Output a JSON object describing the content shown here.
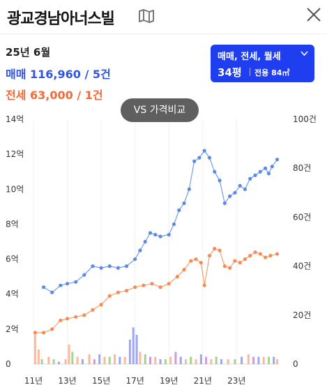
{
  "header": {
    "title": "광교경남아너스빌"
  },
  "summary": {
    "period": "25년 6월",
    "sale_label": "매매",
    "sale_value": "116,960 / 5건",
    "jeonse_label": "전세",
    "jeonse_value": "63,000 / 1건"
  },
  "filter": {
    "types": "매매, 전세, 월세",
    "size": "34평",
    "area": "전용 84㎡"
  },
  "compare_button": "VS 가격비교",
  "colors": {
    "sale": "#5b8ae6",
    "jeonse": "#f68b55",
    "accent": "#1f3ef0"
  },
  "chart_data": {
    "type": "line",
    "x_range": [
      2011,
      2025.5
    ],
    "x_ticks": [
      {
        "value": 2011,
        "label": "11년"
      },
      {
        "value": 2013,
        "label": "13년"
      },
      {
        "value": 2015,
        "label": "15년"
      },
      {
        "value": 2017,
        "label": "17년"
      },
      {
        "value": 2019,
        "label": "19년"
      },
      {
        "value": 2021,
        "label": "21년"
      },
      {
        "value": 2023,
        "label": "23년"
      }
    ],
    "y_left": {
      "range": [
        0,
        14
      ],
      "ticks": [
        {
          "value": 0,
          "label": "0"
        },
        {
          "value": 2,
          "label": "2억"
        },
        {
          "value": 4,
          "label": "4억"
        },
        {
          "value": 6,
          "label": "6억"
        },
        {
          "value": 8,
          "label": "8억"
        },
        {
          "value": 10,
          "label": "10억"
        },
        {
          "value": 12,
          "label": "12억"
        },
        {
          "value": 14,
          "label": "14억"
        }
      ]
    },
    "y_right": {
      "range": [
        0,
        100
      ],
      "ticks": [
        {
          "value": 0,
          "label": "0"
        },
        {
          "value": 20,
          "label": "20건"
        },
        {
          "value": 40,
          "label": "40건"
        },
        {
          "value": 60,
          "label": "60건"
        },
        {
          "value": 80,
          "label": "80건"
        },
        {
          "value": 100,
          "label": "100건"
        }
      ]
    },
    "grid": "vertical",
    "series": [
      {
        "key": "sale",
        "color": "#5b8ae6",
        "points": [
          [
            2011.6,
            4.4
          ],
          [
            2012.1,
            4.1
          ],
          [
            2012.6,
            4.5
          ],
          [
            2013.0,
            4.6
          ],
          [
            2013.5,
            4.7
          ],
          [
            2014.0,
            5.1
          ],
          [
            2014.5,
            5.6
          ],
          [
            2015.0,
            5.5
          ],
          [
            2015.5,
            5.6
          ],
          [
            2016.0,
            5.5
          ],
          [
            2016.5,
            5.6
          ],
          [
            2017.0,
            6.0
          ],
          [
            2017.3,
            6.5
          ],
          [
            2017.6,
            7.0
          ],
          [
            2017.9,
            7.5
          ],
          [
            2018.2,
            7.4
          ],
          [
            2018.5,
            7.3
          ],
          [
            2019.0,
            7.4
          ],
          [
            2019.3,
            8.0
          ],
          [
            2019.6,
            8.8
          ],
          [
            2019.9,
            9.2
          ],
          [
            2020.2,
            10.0
          ],
          [
            2020.5,
            11.6
          ],
          [
            2020.8,
            11.8
          ],
          [
            2021.1,
            12.2
          ],
          [
            2021.4,
            11.8
          ],
          [
            2021.7,
            11.0
          ],
          [
            2022.0,
            10.5
          ],
          [
            2022.3,
            9.2
          ],
          [
            2022.6,
            9.6
          ],
          [
            2022.9,
            9.8
          ],
          [
            2023.2,
            10.2
          ],
          [
            2023.5,
            10.0
          ],
          [
            2023.8,
            10.6
          ],
          [
            2024.1,
            10.8
          ],
          [
            2024.4,
            11.0
          ],
          [
            2024.7,
            11.2
          ],
          [
            2024.9,
            10.9
          ],
          [
            2025.1,
            11.3
          ],
          [
            2025.4,
            11.7
          ]
        ]
      },
      {
        "key": "jeonse",
        "color": "#f68b55",
        "points": [
          [
            2011.1,
            1.8
          ],
          [
            2011.6,
            1.8
          ],
          [
            2012.1,
            2.0
          ],
          [
            2012.6,
            2.5
          ],
          [
            2013.0,
            2.6
          ],
          [
            2013.5,
            2.7
          ],
          [
            2014.0,
            2.8
          ],
          [
            2014.5,
            3.1
          ],
          [
            2015.0,
            3.4
          ],
          [
            2015.5,
            3.9
          ],
          [
            2016.0,
            4.1
          ],
          [
            2016.5,
            4.2
          ],
          [
            2017.0,
            4.4
          ],
          [
            2017.5,
            4.5
          ],
          [
            2018.0,
            4.6
          ],
          [
            2018.5,
            4.4
          ],
          [
            2019.0,
            4.6
          ],
          [
            2019.5,
            5.0
          ],
          [
            2019.9,
            5.4
          ],
          [
            2020.3,
            5.9
          ],
          [
            2020.6,
            6.0
          ],
          [
            2020.9,
            5.8
          ],
          [
            2021.1,
            4.5
          ],
          [
            2021.4,
            6.2
          ],
          [
            2021.7,
            6.6
          ],
          [
            2022.0,
            6.5
          ],
          [
            2022.3,
            5.6
          ],
          [
            2022.6,
            5.5
          ],
          [
            2022.9,
            5.9
          ],
          [
            2023.2,
            5.8
          ],
          [
            2023.5,
            6.0
          ],
          [
            2023.8,
            6.2
          ],
          [
            2024.1,
            6.4
          ],
          [
            2024.4,
            6.3
          ],
          [
            2024.7,
            6.1
          ],
          [
            2025.0,
            6.2
          ],
          [
            2025.4,
            6.3
          ]
        ]
      }
    ],
    "volume": {
      "colors": [
        "#f68b55",
        "#5b6ae6",
        "#67b84a",
        "#b15ab8"
      ],
      "opacity": 0.6,
      "bars": [
        {
          "x": 2011.1,
          "c": 0,
          "v": 12
        },
        {
          "x": 2011.3,
          "c": 0,
          "v": 6
        },
        {
          "x": 2011.5,
          "c": 2,
          "v": 2
        },
        {
          "x": 2011.9,
          "c": 0,
          "v": 3
        },
        {
          "x": 2012.2,
          "c": 2,
          "v": 2
        },
        {
          "x": 2012.5,
          "c": 1,
          "v": 1
        },
        {
          "x": 2012.9,
          "c": 0,
          "v": 2
        },
        {
          "x": 2013.1,
          "c": 0,
          "v": 8
        },
        {
          "x": 2013.3,
          "c": 2,
          "v": 5
        },
        {
          "x": 2013.6,
          "c": 0,
          "v": 3
        },
        {
          "x": 2013.9,
          "c": 1,
          "v": 2
        },
        {
          "x": 2014.3,
          "c": 0,
          "v": 4
        },
        {
          "x": 2014.6,
          "c": 3,
          "v": 2
        },
        {
          "x": 2014.9,
          "c": 1,
          "v": 4
        },
        {
          "x": 2015.2,
          "c": 0,
          "v": 3
        },
        {
          "x": 2015.5,
          "c": 2,
          "v": 3
        },
        {
          "x": 2015.8,
          "c": 0,
          "v": 4
        },
        {
          "x": 2016.1,
          "c": 1,
          "v": 3
        },
        {
          "x": 2016.4,
          "c": 0,
          "v": 3
        },
        {
          "x": 2016.7,
          "c": 1,
          "v": 10
        },
        {
          "x": 2016.9,
          "c": 1,
          "v": 15
        },
        {
          "x": 2017.1,
          "c": 1,
          "v": 12
        },
        {
          "x": 2017.3,
          "c": 0,
          "v": 5
        },
        {
          "x": 2017.6,
          "c": 2,
          "v": 4
        },
        {
          "x": 2017.9,
          "c": 3,
          "v": 3
        },
        {
          "x": 2018.2,
          "c": 0,
          "v": 3
        },
        {
          "x": 2018.5,
          "c": 1,
          "v": 2
        },
        {
          "x": 2018.8,
          "c": 2,
          "v": 2
        },
        {
          "x": 2019.1,
          "c": 0,
          "v": 3
        },
        {
          "x": 2019.4,
          "c": 3,
          "v": 5
        },
        {
          "x": 2019.7,
          "c": 1,
          "v": 3
        },
        {
          "x": 2020.0,
          "c": 0,
          "v": 2
        },
        {
          "x": 2020.3,
          "c": 2,
          "v": 3
        },
        {
          "x": 2020.6,
          "c": 0,
          "v": 2
        },
        {
          "x": 2020.9,
          "c": 1,
          "v": 4
        },
        {
          "x": 2021.2,
          "c": 3,
          "v": 3
        },
        {
          "x": 2021.5,
          "c": 0,
          "v": 2
        },
        {
          "x": 2021.8,
          "c": 2,
          "v": 3
        },
        {
          "x": 2022.1,
          "c": 1,
          "v": 2
        },
        {
          "x": 2022.5,
          "c": 0,
          "v": 2
        },
        {
          "x": 2022.9,
          "c": 2,
          "v": 2
        },
        {
          "x": 2023.3,
          "c": 1,
          "v": 3
        },
        {
          "x": 2023.7,
          "c": 0,
          "v": 4
        },
        {
          "x": 2024.0,
          "c": 3,
          "v": 3
        },
        {
          "x": 2024.3,
          "c": 1,
          "v": 3
        },
        {
          "x": 2024.6,
          "c": 0,
          "v": 3
        },
        {
          "x": 2024.9,
          "c": 2,
          "v": 3
        },
        {
          "x": 2025.2,
          "c": 1,
          "v": 3
        },
        {
          "x": 2025.4,
          "c": 0,
          "v": 2
        }
      ]
    }
  }
}
